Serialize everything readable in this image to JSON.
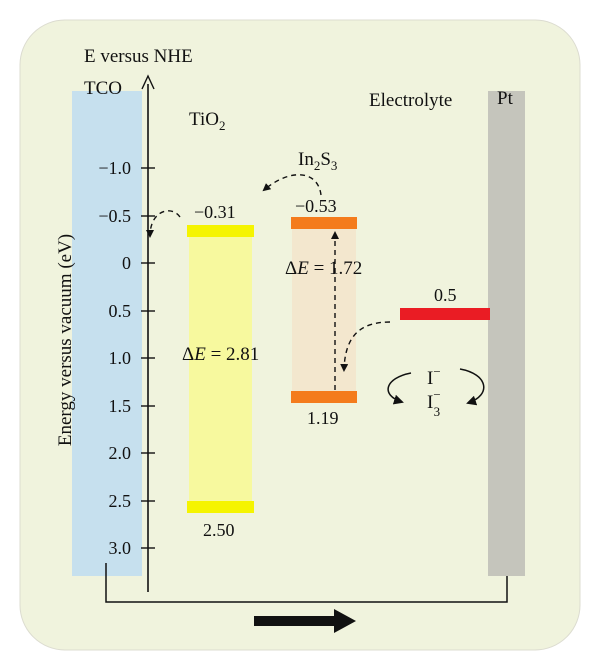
{
  "axis": {
    "title": "E versus NHE",
    "ylabel": "Energy versus vacuum (eV)",
    "ticks": [
      "−1.0",
      "−0.5",
      "0",
      "0.5",
      "1.0",
      "1.5",
      "2.0",
      "2.5",
      "3.0"
    ]
  },
  "labels": {
    "tco": "TCO",
    "tio2_main": "TiO",
    "tio2_sub": "2",
    "in2s3_a": "In",
    "in2s3_sub1": "2",
    "in2s3_b": "S",
    "in2s3_sub2": "3",
    "electrolyte": "Electrolyte",
    "pt": "Pt"
  },
  "tio2": {
    "cb_label": "−0.31",
    "vb_label": "2.50",
    "gap_prefix": "Δ",
    "gap_var": "E",
    "gap_value": " = 2.81"
  },
  "in2s3": {
    "cb_label": "−0.53",
    "vb_label": "1.19",
    "gap_prefix": "Δ",
    "gap_var": "E",
    "gap_value": " = 1.72"
  },
  "electrolyte": {
    "redox_label": "0.5",
    "iodide": "I",
    "iodide_sup": "−",
    "triiodide": "I",
    "triiodide_sup": "−",
    "triiodide_sub": "3"
  },
  "colors": {
    "background": "#f0f3dd",
    "tco": "#c6e0ee",
    "pt": "#c5c5bc",
    "tio2_band": "#f7f99a",
    "tio2_edge": "#f5f400",
    "in2s3_band": "#f3e7ce",
    "in2s3_edge": "#f47b1c",
    "redox": "#ea1c24"
  }
}
